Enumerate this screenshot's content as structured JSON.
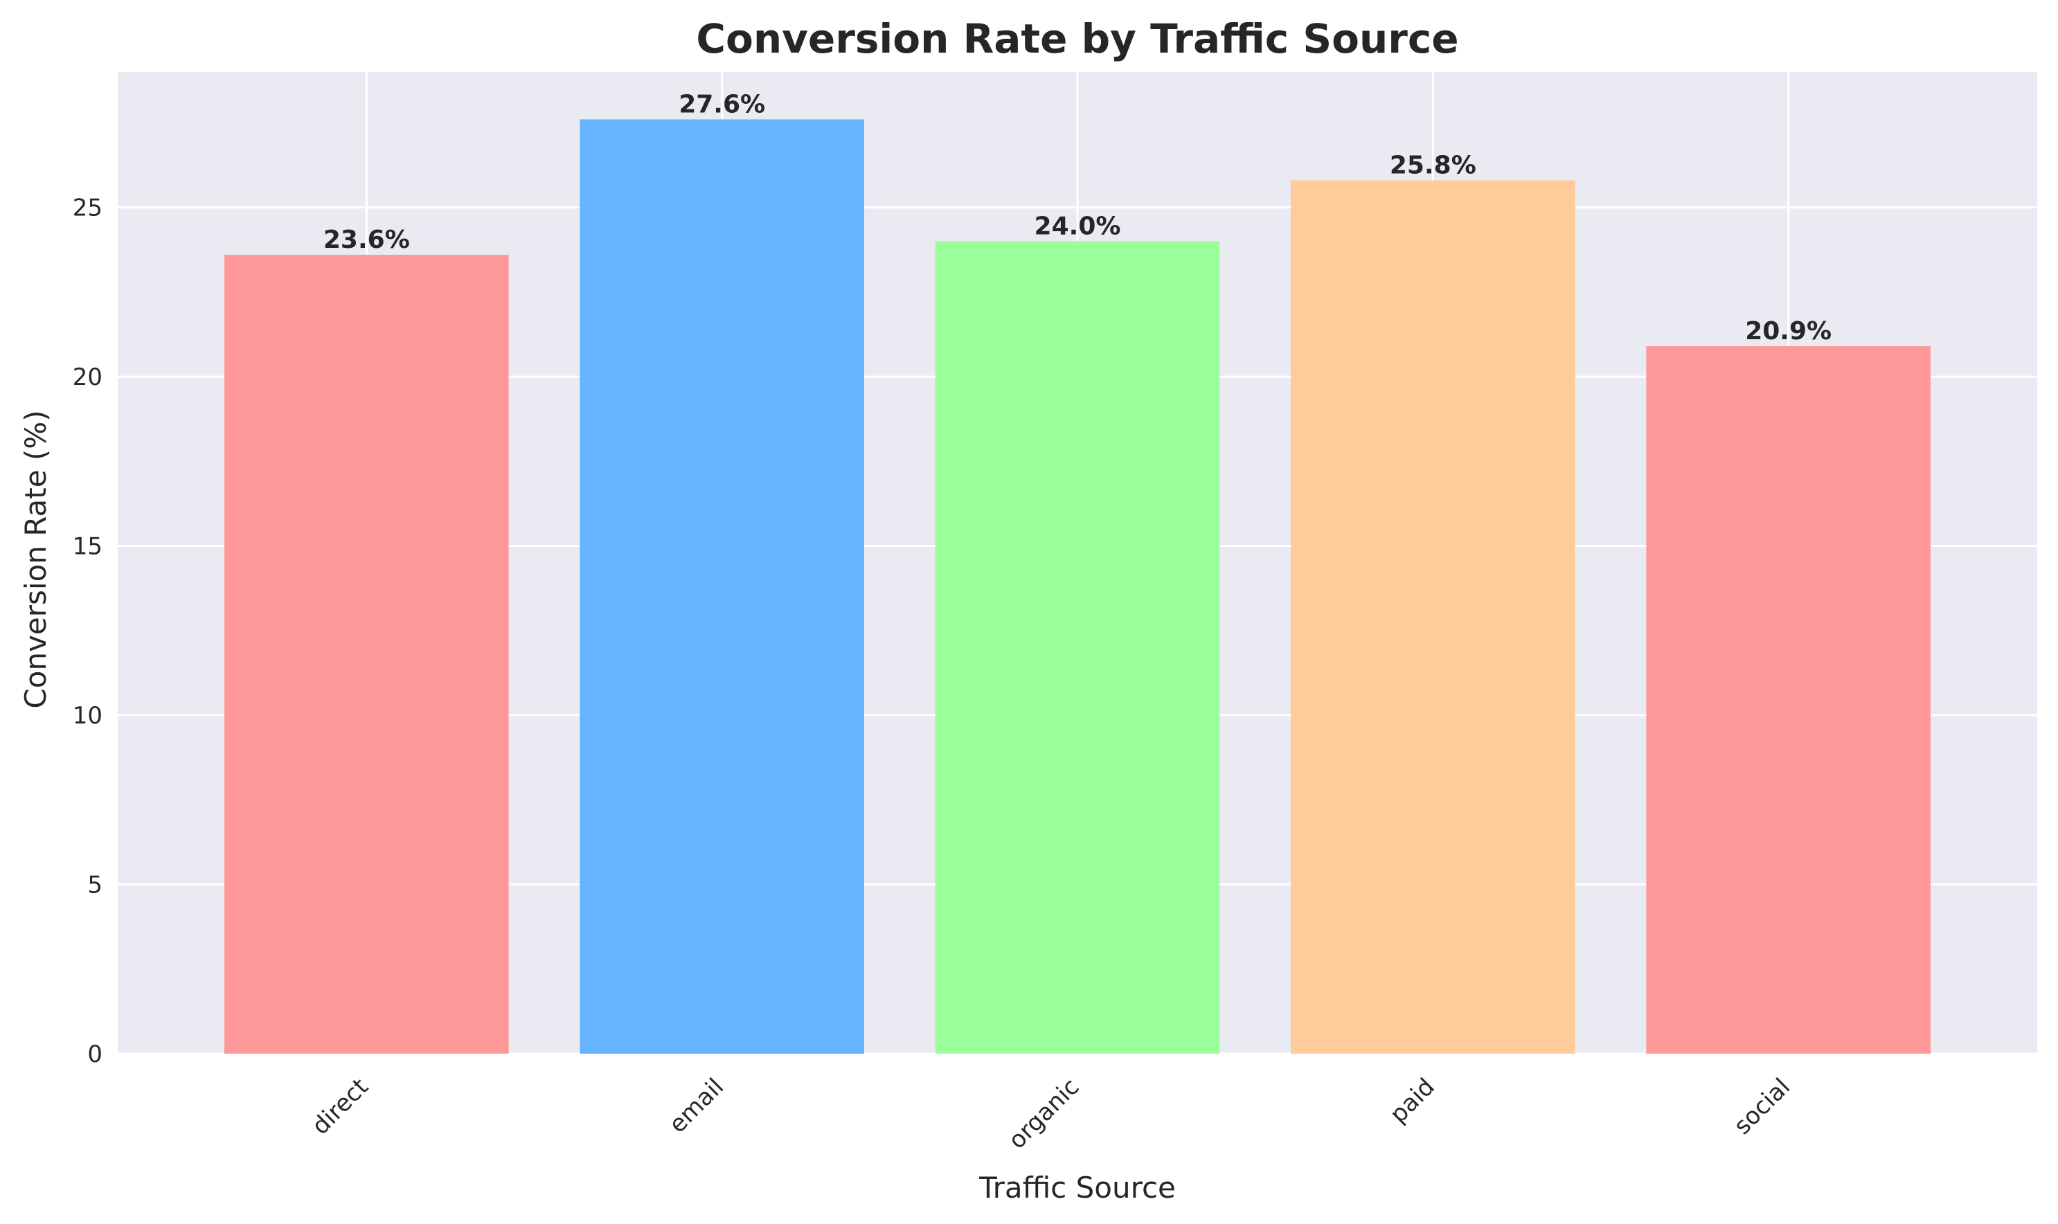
{
  "chart_data": {
    "type": "bar",
    "title": "Conversion Rate by Traffic Source",
    "xlabel": "Traffic Source",
    "ylabel": "Conversion Rate (%)",
    "categories": [
      "direct",
      "email",
      "organic",
      "paid",
      "social"
    ],
    "values": [
      23.6,
      27.6,
      24.0,
      25.8,
      20.9
    ],
    "value_labels": [
      "23.6%",
      "27.6%",
      "24.0%",
      "25.8%",
      "20.9%"
    ],
    "colors": [
      "#ff9999",
      "#66b3ff",
      "#99ff99",
      "#ffcc99",
      "#ff9999"
    ],
    "ylim": [
      0,
      29.0
    ],
    "yticks": [
      0,
      5,
      10,
      15,
      20,
      25
    ],
    "ytick_labels": [
      "0",
      "5",
      "10",
      "15",
      "20",
      "25"
    ],
    "grid": true,
    "background": "#eaeaf2",
    "grid_color": "#ffffff"
  }
}
